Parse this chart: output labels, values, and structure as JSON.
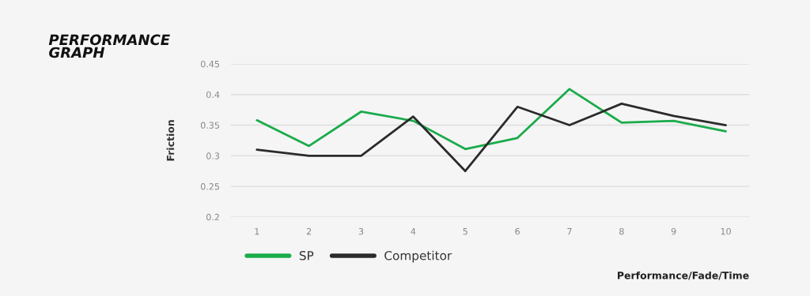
{
  "chart_data": {
    "type": "line",
    "title": "PERFORMANCE\nGRAPH",
    "xlabel": "Performance/Fade/Time",
    "ylabel": "Friction",
    "categories": [
      "1",
      "2",
      "3",
      "4",
      "5",
      "6",
      "7",
      "8",
      "9",
      "10"
    ],
    "series": [
      {
        "name": "SP",
        "color": "#1aab4b",
        "values": [
          0.358,
          0.316,
          0.372,
          0.357,
          0.311,
          0.329,
          0.409,
          0.354,
          0.357,
          0.34
        ]
      },
      {
        "name": "Competitor",
        "color": "#2b2b2b",
        "values": [
          0.31,
          0.3,
          0.3,
          0.364,
          0.275,
          0.38,
          0.35,
          0.385,
          0.365,
          0.35
        ]
      }
    ],
    "ylim": [
      0.2,
      0.45
    ],
    "yticks": [
      0.2,
      0.25,
      0.3,
      0.35,
      0.4,
      0.45
    ],
    "grid": "y",
    "legend": "bottom left",
    "marker": "none",
    "line_style": "solid"
  }
}
